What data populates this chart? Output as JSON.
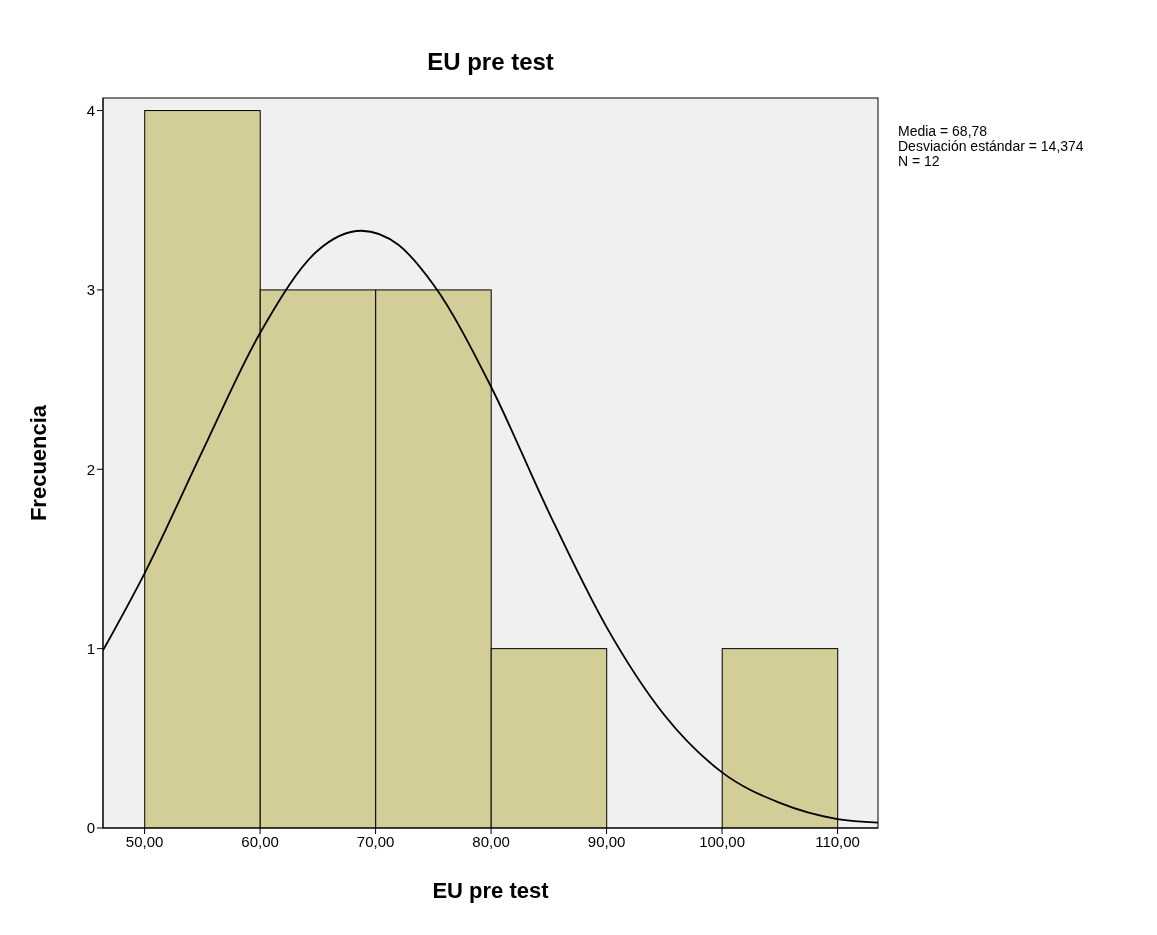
{
  "chart_data": {
    "type": "histogram",
    "title": "EU pre test",
    "xlabel": "EU pre test",
    "ylabel": "Frecuencia",
    "bins": [
      50,
      60,
      70,
      80,
      90,
      100,
      110
    ],
    "values": [
      4,
      3,
      3,
      1,
      0,
      1
    ],
    "color": "#d3ce97",
    "series": [
      {
        "type": "line",
        "color": "#000000",
        "x": [
          46.4,
          50,
          55,
          60,
          65,
          68.78,
          72,
          75,
          80,
          85,
          90,
          95,
          100,
          105,
          110,
          113.5
        ],
        "values": [
          0.99,
          1.42,
          2.1,
          2.76,
          3.22,
          3.33,
          3.25,
          3.03,
          2.46,
          1.76,
          1.12,
          0.63,
          0.31,
          0.14,
          0.05,
          0.03
        ]
      }
    ],
    "xlim": [
      46.4,
      113.5
    ],
    "xticks": [
      {
        "value": 50,
        "label": "50,00"
      },
      {
        "value": 60,
        "label": "60,00"
      },
      {
        "value": 70,
        "label": "70,00"
      },
      {
        "value": 80,
        "label": "80,00"
      },
      {
        "value": 90,
        "label": "90,00"
      },
      {
        "value": 100,
        "label": "100,00"
      },
      {
        "value": 110,
        "label": "110,00"
      }
    ],
    "ylim": [
      0,
      4.07
    ],
    "yticks": [
      0,
      1,
      2,
      3,
      4
    ],
    "grid": false,
    "legend": false,
    "annotations": [
      "Media = 68,78",
      "Desviación estándar = 14,374",
      "N = 12"
    ]
  }
}
